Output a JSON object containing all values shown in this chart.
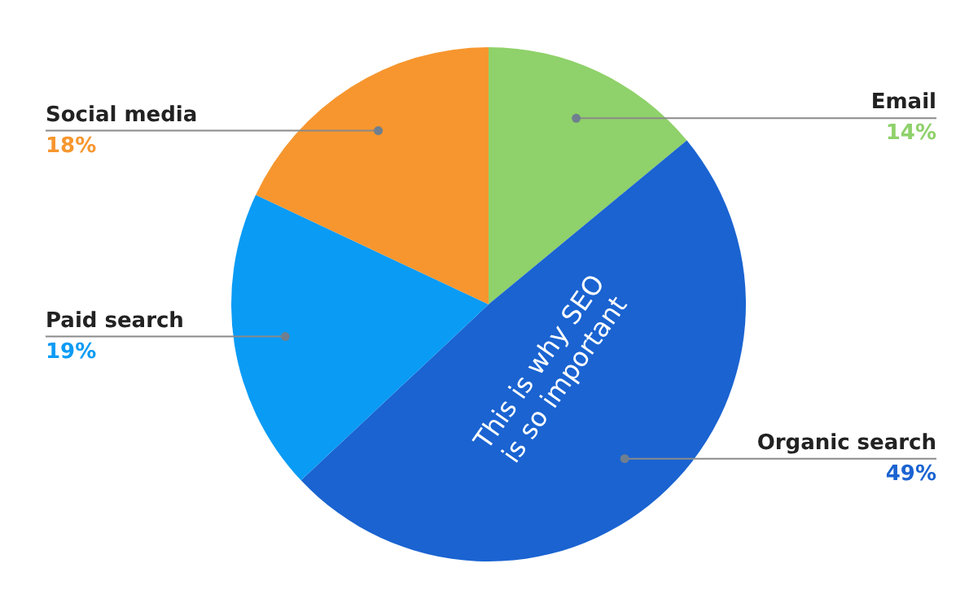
{
  "chart_data": {
    "type": "pie",
    "categories": [
      "Email",
      "Organic search",
      "Paid search",
      "Social media"
    ],
    "values": [
      14,
      49,
      19,
      18
    ],
    "colors": [
      "#8fd16a",
      "#1a63d1",
      "#0a9bf5",
      "#f7962e"
    ],
    "value_labels": [
      "14%",
      "49%",
      "19%",
      "18%"
    ],
    "annotations": [
      {
        "text": "This is why SEO is so important",
        "x": "Organic search"
      }
    ]
  }
}
